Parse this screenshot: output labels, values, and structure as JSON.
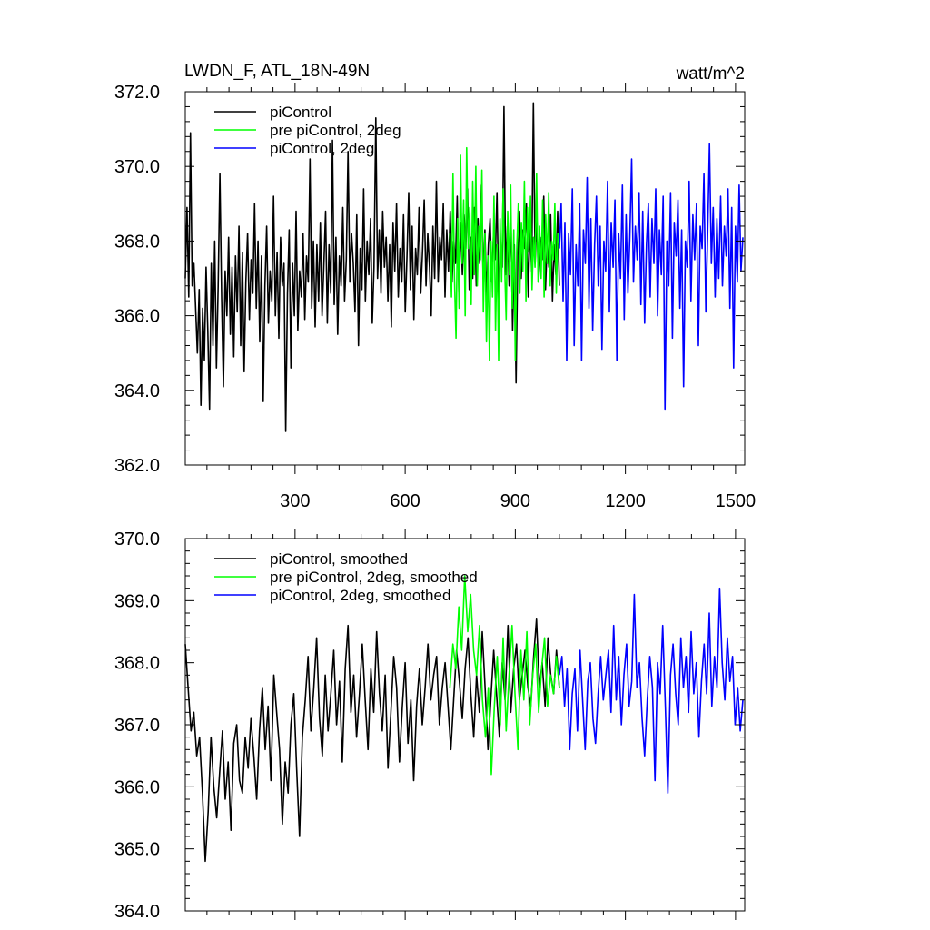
{
  "figure": {
    "title_left": "LWDN_F, ATL_18N-49N",
    "title_right": "watt/m^2"
  },
  "colors": {
    "piControl": "#000000",
    "pre_piControl_2deg": "#00ff00",
    "piControl_2deg": "#0000ff"
  },
  "chart_data": [
    {
      "type": "line",
      "name": "top-panel",
      "xlim": [
        1,
        1525
      ],
      "ylim": [
        362.0,
        372.0
      ],
      "xticks": [
        300,
        600,
        900,
        1200,
        1500
      ],
      "xtick_labels": [
        "300",
        "600",
        "900",
        "1200",
        "1500"
      ],
      "yticks": [
        362.0,
        364.0,
        366.0,
        368.0,
        370.0,
        372.0
      ],
      "ytick_labels": [
        "362.0",
        "364.0",
        "366.0",
        "368.0",
        "370.0",
        "372.0"
      ],
      "legend_position": "top-left",
      "series": [
        {
          "name": "piControl",
          "color": "#000000",
          "x_start": 1,
          "x_end": 1020,
          "y": [
            367.0,
            368.9,
            366.5,
            370.9,
            366.8,
            367.4,
            366.2,
            365.0,
            366.7,
            363.6,
            366.2,
            364.8,
            367.3,
            365.6,
            363.5,
            367.4,
            365.2,
            368.0,
            364.6,
            366.8,
            369.8,
            366.5,
            364.1,
            367.2,
            366.0,
            368.1,
            365.5,
            367.3,
            364.9,
            367.6,
            366.1,
            368.4,
            365.2,
            367.7,
            364.5,
            366.9,
            368.2,
            365.9,
            367.5,
            366.6,
            369.0,
            366.2,
            368.0,
            365.3,
            367.6,
            363.7,
            366.8,
            368.4,
            365.8,
            367.2,
            366.4,
            369.2,
            366.0,
            367.7,
            365.4,
            368.1,
            366.8,
            367.4,
            362.9,
            366.6,
            368.3,
            364.6,
            367.4,
            366.0,
            368.8,
            365.6,
            367.2,
            366.5,
            368.2,
            365.9,
            367.6,
            366.9,
            370.2,
            366.2,
            368.0,
            365.7,
            367.9,
            366.4,
            368.5,
            366.0,
            367.3,
            368.8,
            365.8,
            367.9,
            366.6,
            370.7,
            366.3,
            368.1,
            365.5,
            367.6,
            366.8,
            368.9,
            366.4,
            367.5,
            370.4,
            366.9,
            368.2,
            367.4,
            366.1,
            368.7,
            365.2,
            367.8,
            366.7,
            369.4,
            366.4,
            368.0,
            367.1,
            368.6,
            365.8,
            367.3,
            371.3,
            367.0,
            368.3,
            366.6,
            368.8,
            367.3,
            368.1,
            366.4,
            367.9,
            365.7,
            368.5,
            367.2,
            369.0,
            366.5,
            367.8,
            366.9,
            368.7,
            366.1,
            367.6,
            369.3,
            366.7,
            368.4,
            365.9,
            367.8,
            367.1,
            368.9,
            366.6,
            367.7,
            369.1,
            366.8,
            368.2,
            367.3,
            366.0,
            368.4,
            367.0,
            369.6,
            366.9,
            368.1,
            367.5,
            369.0,
            366.5,
            368.3,
            367.2,
            368.8,
            366.9,
            368.0,
            367.4,
            369.2,
            366.6,
            368.5,
            367.1,
            368.7,
            367.8,
            369.4,
            366.7,
            368.1,
            367.0,
            368.9,
            366.8,
            368.6,
            367.4,
            369.5,
            367.0,
            368.3,
            366.5,
            367.9,
            368.6,
            366.9,
            368.2,
            367.5,
            369.3,
            366.4,
            368.0,
            367.3,
            371.6,
            367.1,
            368.4,
            366.8,
            368.7,
            365.6,
            367.9,
            364.2,
            367.6,
            368.8,
            367.0,
            368.3,
            367.8,
            369.0,
            366.5,
            368.4,
            367.2,
            371.7,
            367.4,
            368.6,
            366.9,
            368.1,
            367.5,
            369.2,
            366.7,
            368.0,
            367.3,
            368.7,
            366.4,
            367.9,
            367.1,
            368.8,
            366.8
          ]
        },
        {
          "name": "pre piControl, 2deg",
          "color": "#00ff00",
          "x_start": 722,
          "x_end": 1020,
          "y": [
            368.2,
            366.5,
            369.8,
            367.0,
            365.4,
            368.6,
            366.2,
            370.3,
            367.4,
            369.1,
            366.0,
            370.5,
            367.8,
            368.9,
            366.3,
            369.6,
            367.1,
            370.0,
            366.8,
            368.4,
            367.5,
            369.9,
            366.1,
            368.2,
            365.3,
            367.6,
            364.8,
            368.0,
            366.5,
            369.2,
            365.6,
            367.9,
            364.8,
            368.6,
            366.9,
            369.4,
            367.3,
            365.9,
            368.8,
            367.1,
            369.5,
            366.2,
            368.3,
            364.8,
            367.8,
            369.0,
            366.6,
            368.5,
            367.2,
            369.6,
            366.4,
            368.9,
            367.7,
            369.2,
            366.7,
            368.1,
            367.3,
            369.8,
            366.9,
            368.4,
            367.0,
            369.1,
            366.5,
            368.7,
            367.4,
            369.3,
            366.8,
            368.0,
            367.5,
            369.0,
            366.6,
            368.2,
            367.9
          ]
        },
        {
          "name": "piControl, 2deg",
          "color": "#0000ff",
          "x_start": 1020,
          "x_end": 1520,
          "y": [
            367.8,
            369.0,
            366.4,
            368.5,
            364.8,
            368.2,
            367.1,
            369.4,
            365.2,
            367.9,
            366.8,
            369.0,
            364.8,
            368.3,
            367.4,
            369.7,
            366.2,
            368.6,
            365.6,
            367.9,
            369.2,
            366.8,
            368.4,
            365.1,
            368.0,
            367.2,
            369.6,
            366.1,
            368.5,
            367.3,
            369.1,
            364.8,
            368.2,
            367.0,
            369.5,
            365.9,
            368.7,
            366.6,
            368.1,
            370.2,
            366.9,
            368.4,
            367.5,
            369.3,
            366.3,
            368.8,
            365.8,
            367.9,
            369.0,
            366.5,
            368.6,
            367.4,
            369.4,
            366.0,
            368.3,
            367.1,
            369.2,
            363.5,
            368.0,
            366.8,
            369.3,
            365.4,
            368.5,
            367.6,
            369.1,
            366.2,
            368.3,
            364.1,
            368.0,
            367.3,
            369.6,
            366.4,
            368.7,
            367.5,
            369.0,
            365.2,
            368.4,
            367.8,
            369.8,
            366.1,
            368.2,
            370.6,
            367.4,
            368.9,
            366.5,
            368.6,
            367.0,
            369.2,
            366.8,
            368.4,
            367.6,
            369.4,
            366.2,
            368.9,
            364.6,
            368.4,
            366.9,
            369.5,
            367.2,
            368.1
          ]
        }
      ]
    },
    {
      "type": "line",
      "name": "bottom-panel",
      "xlim": [
        1,
        1525
      ],
      "ylim": [
        364.0,
        370.0
      ],
      "xticks": [
        300,
        600,
        900,
        1200,
        1500
      ],
      "yticks": [
        364.0,
        365.0,
        366.0,
        367.0,
        368.0,
        369.0,
        370.0
      ],
      "ytick_labels": [
        "364.0",
        "365.0",
        "366.0",
        "367.0",
        "368.0",
        "369.0",
        "370.0"
      ],
      "legend_position": "top-left",
      "series": [
        {
          "name": "piControl, smoothed",
          "color": "#000000",
          "x_start": 1,
          "x_end": 1020,
          "y": [
            368.3,
            367.6,
            366.9,
            367.2,
            366.5,
            366.8,
            365.9,
            364.8,
            365.6,
            366.8,
            366.0,
            365.5,
            366.2,
            366.9,
            365.8,
            366.4,
            365.3,
            366.7,
            367.0,
            366.1,
            365.9,
            366.8,
            366.3,
            367.1,
            366.5,
            365.8,
            366.9,
            367.6,
            366.6,
            367.3,
            366.1,
            367.8,
            367.2,
            366.6,
            365.4,
            366.4,
            365.9,
            367.0,
            367.5,
            366.3,
            365.2,
            366.8,
            367.4,
            368.1,
            366.9,
            367.6,
            368.4,
            367.1,
            366.5,
            367.8,
            366.9,
            367.5,
            368.2,
            367.0,
            367.7,
            366.4,
            367.9,
            368.6,
            367.2,
            367.8,
            366.8,
            367.5,
            368.3,
            367.4,
            366.6,
            367.9,
            367.2,
            368.5,
            367.5,
            366.9,
            367.8,
            366.3,
            367.2,
            368.1,
            367.6,
            366.4,
            367.3,
            368.0,
            366.7,
            367.4,
            366.1,
            367.3,
            367.9,
            367.0,
            367.6,
            368.3,
            367.4,
            367.8,
            368.1,
            367.0,
            367.6,
            368.0,
            367.3,
            366.6,
            367.4,
            368.2,
            367.7,
            367.1,
            367.9,
            368.4,
            367.5,
            366.8,
            367.8,
            367.2,
            368.5,
            367.6,
            366.6,
            367.4,
            368.2,
            367.5,
            366.8,
            368.0,
            367.4,
            368.6,
            367.2,
            367.9,
            368.3,
            367.4,
            367.8,
            368.2,
            367.6,
            367.3,
            368.1,
            368.7,
            367.6,
            368.0,
            367.3,
            368.4,
            367.8,
            367.5,
            368.2,
            367.6
          ]
        },
        {
          "name": "pre piControl, 2deg, smoothed",
          "color": "#00ff00",
          "x_start": 722,
          "x_end": 1020,
          "y": [
            367.6,
            368.3,
            367.9,
            368.9,
            368.2,
            369.4,
            368.5,
            369.1,
            368.2,
            367.8,
            368.6,
            367.4,
            366.8,
            367.6,
            366.2,
            367.3,
            368.1,
            367.0,
            368.4,
            366.9,
            367.8,
            368.6,
            367.5,
            366.6,
            368.2,
            367.4,
            368.5,
            367.0,
            367.8,
            368.3,
            367.2,
            367.9,
            368.4,
            367.3,
            367.8,
            367.5,
            368.1,
            367.6
          ]
        },
        {
          "name": "piControl, 2deg, smoothed",
          "color": "#0000ff",
          "x_start": 1020,
          "x_end": 1520,
          "y": [
            367.8,
            368.1,
            367.3,
            367.9,
            366.6,
            367.5,
            367.9,
            366.9,
            368.2,
            367.4,
            366.6,
            367.7,
            368.0,
            367.1,
            366.7,
            367.5,
            368.1,
            367.4,
            367.8,
            368.2,
            367.2,
            368.6,
            367.4,
            368.1,
            367.0,
            367.8,
            368.3,
            367.3,
            367.7,
            369.1,
            367.6,
            368.0,
            367.1,
            366.5,
            367.4,
            368.1,
            367.6,
            366.1,
            368.0,
            367.5,
            368.6,
            367.3,
            365.9,
            367.8,
            368.3,
            367.5,
            367.0,
            368.4,
            367.6,
            368.1,
            367.2,
            368.5,
            367.5,
            368.0,
            366.8,
            367.7,
            368.3,
            367.5,
            368.8,
            367.3,
            368.1,
            367.6,
            369.2,
            368.0,
            367.4,
            368.4,
            367.7,
            368.1,
            367.0,
            367.6,
            366.9,
            367.4
          ]
        }
      ]
    }
  ]
}
